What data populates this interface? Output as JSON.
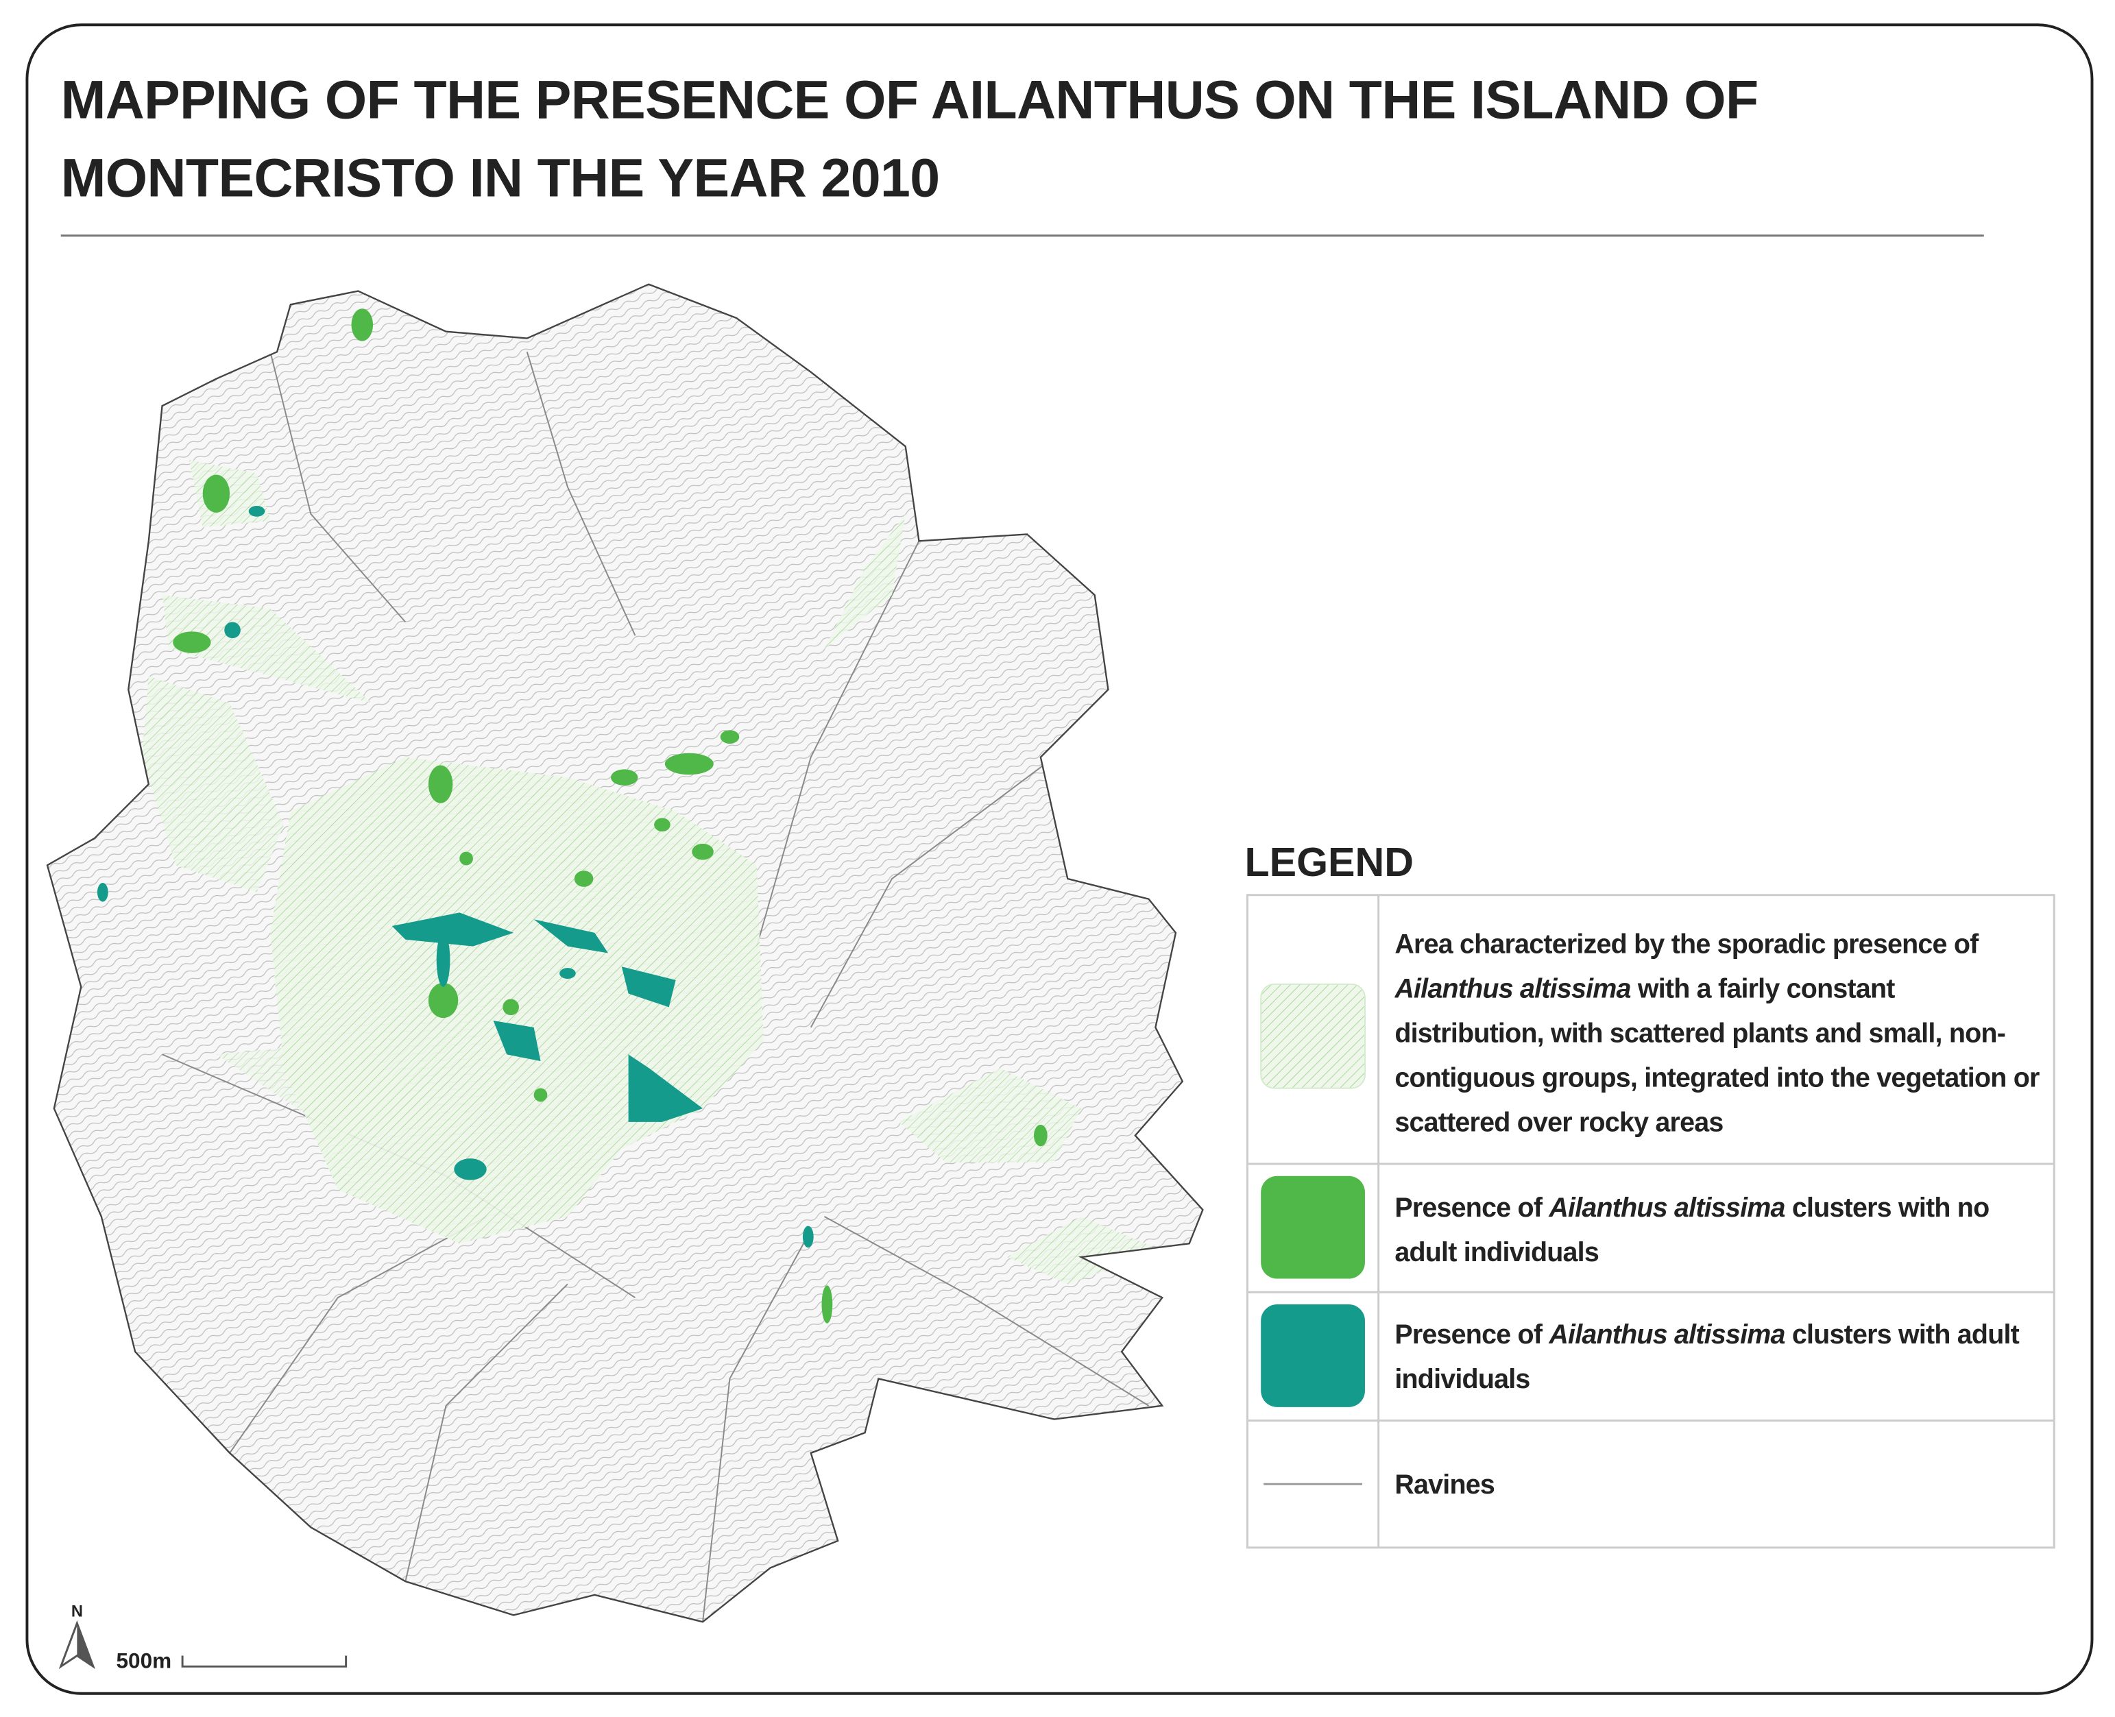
{
  "title": "MAPPING OF THE PRESENCE OF AILANTHUS ON THE ISLAND OF MONTECRISTO IN THE YEAR 2010",
  "legend": {
    "title": "LEGEND",
    "items": [
      {
        "segments": [
          {
            "text": "Area characterized by the sporadic presence of ",
            "italic": false
          },
          {
            "text": "Ailanthus altissima",
            "italic": true
          },
          {
            "text": " with a fairly constant distribution, with scattered plants and small, non-contiguous groups, integrated into the vegetation or scattered over rocky areas",
            "italic": false
          }
        ]
      },
      {
        "segments": [
          {
            "text": "Presence of ",
            "italic": false
          },
          {
            "text": "Ailanthus altissima",
            "italic": true
          },
          {
            "text": " clusters with no adult individuals",
            "italic": false
          }
        ]
      },
      {
        "segments": [
          {
            "text": "Presence of ",
            "italic": false
          },
          {
            "text": "Ailanthus altissima",
            "italic": true
          },
          {
            "text": " clusters with adult individuals",
            "italic": false
          }
        ]
      },
      {
        "segments": [
          {
            "text": "Ravines",
            "italic": false
          }
        ]
      }
    ]
  },
  "north": "N",
  "scale": {
    "label": "500m"
  }
}
